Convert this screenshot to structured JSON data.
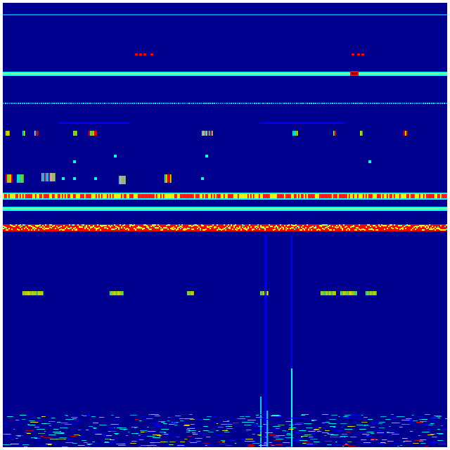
{
  "image": {
    "kind": "spectrogram-heatmap",
    "colormap": "jet",
    "colors": {
      "background": "#00008f",
      "low": "#0000ff",
      "mid_low": "#00ffff",
      "mid": "#7fff7f",
      "mid_high": "#ffff00",
      "high": "#ff0000",
      "max": "#800000"
    }
  }
}
